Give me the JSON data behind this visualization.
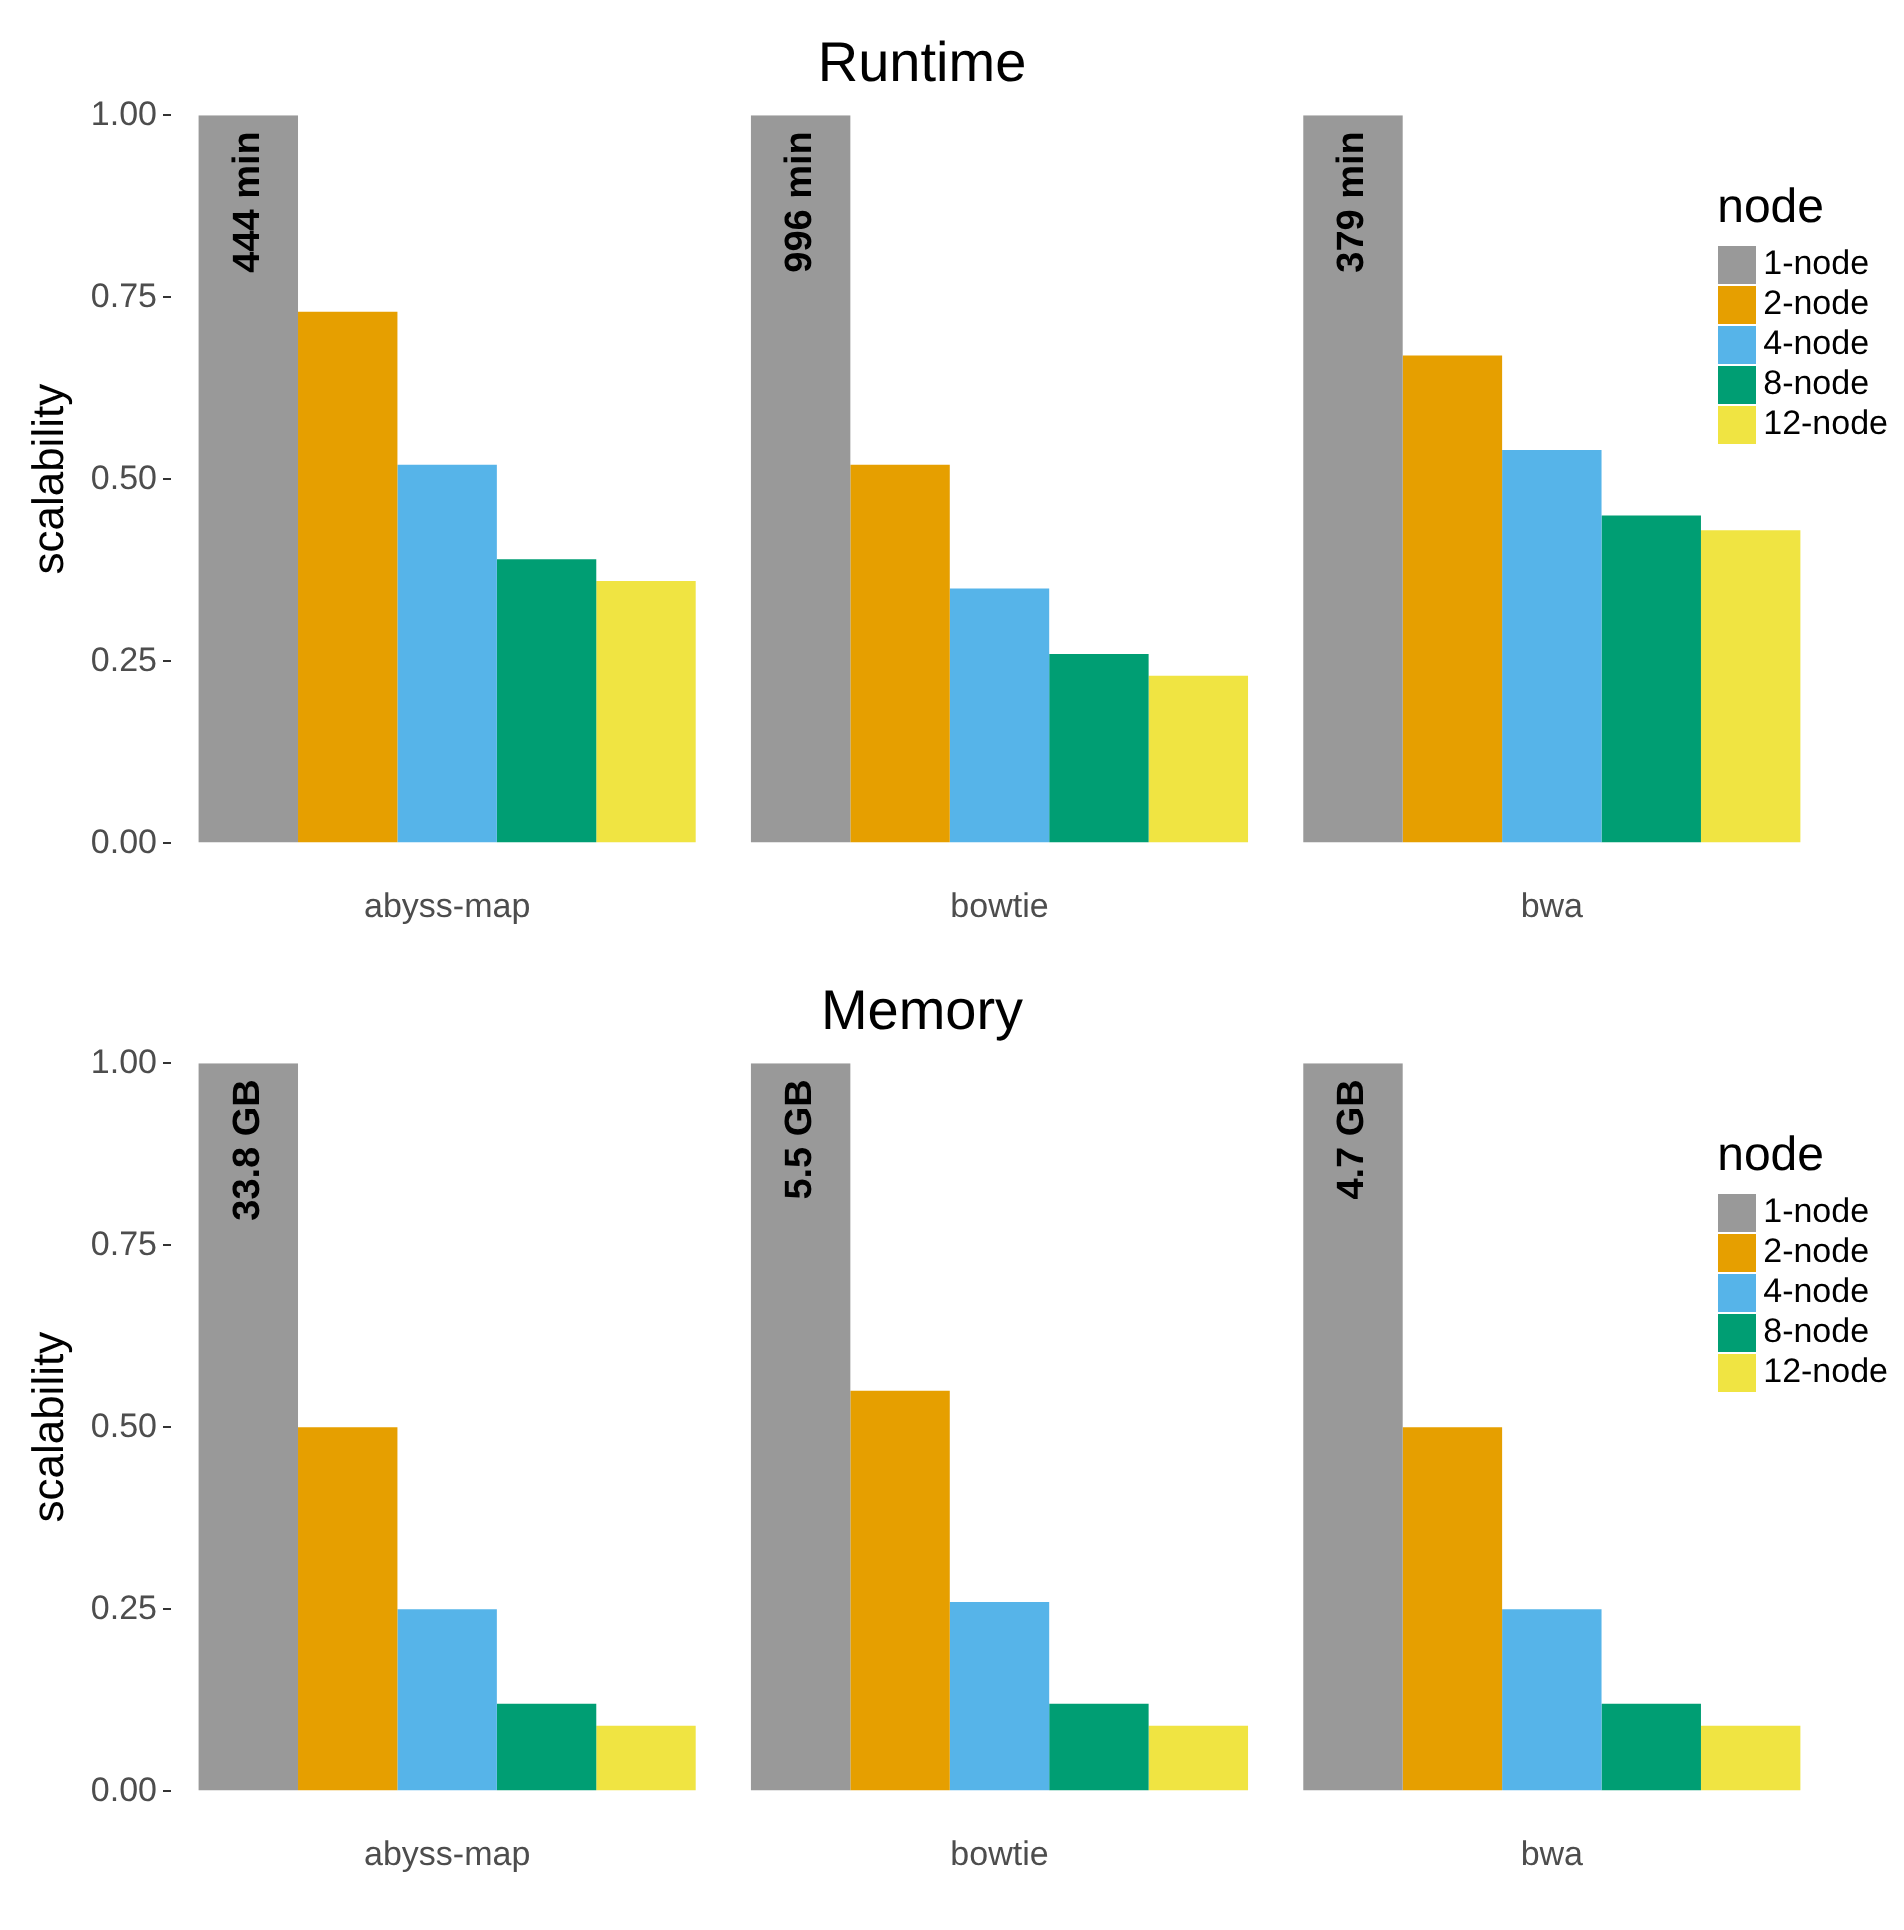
{
  "chart_data": [
    {
      "type": "bar",
      "title": "Runtime",
      "ylabel": "scalability",
      "legend_title": "node",
      "legend": "top right",
      "categories": [
        "abyss-map",
        "bowtie",
        "bwa"
      ],
      "ylim": [
        0,
        1
      ],
      "annotations": [
        "444 min",
        "996 min",
        "379 min"
      ],
      "yticks": [
        {
          "value": 0,
          "label": "0.00"
        },
        {
          "value": 0.25,
          "label": "0.25"
        },
        {
          "value": 0.5,
          "label": "0.50"
        },
        {
          "value": 0.75,
          "label": "0.75"
        },
        {
          "value": 1,
          "label": "1.00"
        }
      ],
      "series": [
        {
          "name": "1-node",
          "color": "#999999",
          "values": [
            1,
            1,
            1
          ]
        },
        {
          "name": "2-node",
          "color": "#e69f00",
          "values": [
            0.73,
            0.52,
            0.67
          ]
        },
        {
          "name": "4-node",
          "color": "#56b4e9",
          "values": [
            0.52,
            0.35,
            0.54
          ]
        },
        {
          "name": "8-node",
          "color": "#009e73",
          "values": [
            0.39,
            0.26,
            0.45
          ]
        },
        {
          "name": "12-node",
          "color": "#f0e442",
          "values": [
            0.36,
            0.23,
            0.43
          ]
        }
      ]
    },
    {
      "type": "bar",
      "title": "Memory",
      "ylabel": "scalability",
      "legend_title": "node",
      "legend": "top right",
      "categories": [
        "abyss-map",
        "bowtie",
        "bwa"
      ],
      "ylim": [
        0,
        1
      ],
      "annotations": [
        "33.8 GB",
        "5.5 GB",
        "4.7 GB"
      ],
      "yticks": [
        {
          "value": 0,
          "label": "0.00"
        },
        {
          "value": 0.25,
          "label": "0.25"
        },
        {
          "value": 0.5,
          "label": "0.50"
        },
        {
          "value": 0.75,
          "label": "0.75"
        },
        {
          "value": 1,
          "label": "1.00"
        }
      ],
      "series": [
        {
          "name": "1-node",
          "color": "#999999",
          "values": [
            1,
            1,
            1
          ]
        },
        {
          "name": "2-node",
          "color": "#e69f00",
          "values": [
            0.5,
            0.55,
            0.5
          ]
        },
        {
          "name": "4-node",
          "color": "#56b4e9",
          "values": [
            0.25,
            0.26,
            0.25
          ]
        },
        {
          "name": "8-node",
          "color": "#009e73",
          "values": [
            0.12,
            0.12,
            0.12
          ]
        },
        {
          "name": "12-node",
          "color": "#f0e442",
          "values": [
            0.09,
            0.09,
            0.09
          ]
        }
      ]
    }
  ]
}
